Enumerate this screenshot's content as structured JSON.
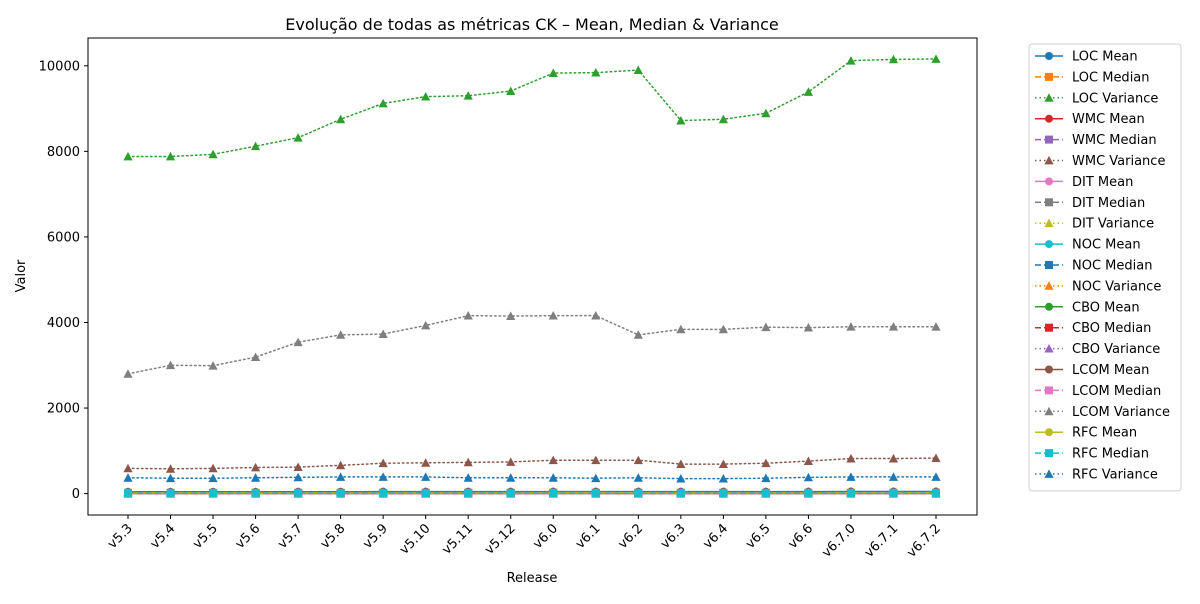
{
  "chart_data": {
    "type": "line",
    "title": "Evolução de todas as métricas CK – Mean, Median & Variance",
    "xlabel": "Release",
    "ylabel": "Valor",
    "ylim": [
      -500,
      10650
    ],
    "yticks": [
      0,
      2000,
      4000,
      6000,
      8000,
      10000
    ],
    "grid": false,
    "legend_position": "outside-right",
    "categories": [
      "v5.3",
      "v5.4",
      "v5.5",
      "v5.6",
      "v5.7",
      "v5.8",
      "v5.9",
      "v5.10",
      "v5.11",
      "v5.12",
      "v6.0",
      "v6.1",
      "v6.2",
      "v6.3",
      "v6.4",
      "v6.5",
      "v6.6",
      "v6.7.0",
      "v6.7.1",
      "v6.7.2"
    ],
    "series": [
      {
        "name": "LOC Mean",
        "color": "#1f77b4",
        "style": "solid",
        "marker": "circle",
        "values": [
          42,
          42,
          42,
          42,
          43,
          44,
          45,
          45,
          46,
          46,
          47,
          47,
          47,
          45,
          45,
          45,
          46,
          48,
          48,
          48
        ]
      },
      {
        "name": "LOC Median",
        "color": "#ff7f0e",
        "style": "dashed",
        "marker": "square",
        "values": [
          20,
          20,
          20,
          20,
          20,
          21,
          21,
          21,
          21,
          21,
          22,
          22,
          22,
          21,
          21,
          21,
          21,
          22,
          22,
          22
        ]
      },
      {
        "name": "LOC Variance",
        "color": "#2ca02c",
        "style": "dotted",
        "marker": "triangle",
        "values": [
          7880,
          7880,
          7930,
          8120,
          8320,
          8750,
          9120,
          9280,
          9300,
          9410,
          9830,
          9840,
          9900,
          8720,
          8750,
          8890,
          9390,
          10120,
          10150,
          10160
        ]
      },
      {
        "name": "WMC Mean",
        "color": "#d62728",
        "style": "solid",
        "marker": "circle",
        "values": [
          9,
          9,
          9,
          9,
          9,
          9,
          10,
          10,
          10,
          10,
          10,
          10,
          10,
          10,
          10,
          10,
          10,
          10,
          10,
          10
        ]
      },
      {
        "name": "WMC Median",
        "color": "#9467bd",
        "style": "dashed",
        "marker": "square",
        "values": [
          4,
          4,
          4,
          4,
          4,
          4,
          4,
          4,
          4,
          4,
          4,
          4,
          4,
          4,
          4,
          4,
          4,
          4,
          4,
          4
        ]
      },
      {
        "name": "WMC Variance",
        "color": "#8c564b",
        "style": "dotted",
        "marker": "triangle",
        "values": [
          590,
          580,
          590,
          610,
          620,
          660,
          710,
          720,
          730,
          740,
          780,
          780,
          780,
          690,
          690,
          710,
          760,
          820,
          820,
          830
        ]
      },
      {
        "name": "DIT Mean",
        "color": "#e377c2",
        "style": "solid",
        "marker": "circle",
        "values": [
          1,
          1,
          1,
          1,
          1,
          1,
          1,
          1,
          1,
          1,
          1,
          1,
          1,
          1,
          1,
          1,
          1,
          1,
          1,
          1
        ]
      },
      {
        "name": "DIT Median",
        "color": "#7f7f7f",
        "style": "dashed",
        "marker": "square",
        "values": [
          1,
          1,
          1,
          1,
          1,
          1,
          1,
          1,
          1,
          1,
          1,
          1,
          1,
          1,
          1,
          1,
          1,
          1,
          1,
          1
        ]
      },
      {
        "name": "DIT Variance",
        "color": "#bcbd22",
        "style": "dotted",
        "marker": "triangle",
        "values": [
          0,
          0,
          0,
          0,
          0,
          0,
          0,
          0,
          0,
          0,
          0,
          0,
          0,
          0,
          0,
          0,
          0,
          0,
          0,
          0
        ]
      },
      {
        "name": "NOC Mean",
        "color": "#17becf",
        "style": "solid",
        "marker": "circle",
        "values": [
          0,
          0,
          0,
          0,
          0,
          0,
          0,
          0,
          0,
          0,
          0,
          0,
          0,
          0,
          0,
          0,
          0,
          0,
          0,
          0
        ]
      },
      {
        "name": "NOC Median",
        "color": "#1f77b4",
        "style": "dashed",
        "marker": "square",
        "values": [
          0,
          0,
          0,
          0,
          0,
          0,
          0,
          0,
          0,
          0,
          0,
          0,
          0,
          0,
          0,
          0,
          0,
          0,
          0,
          0
        ]
      },
      {
        "name": "NOC Variance",
        "color": "#ff7f0e",
        "style": "dotted",
        "marker": "triangle",
        "values": [
          0,
          0,
          0,
          0,
          0,
          0,
          0,
          0,
          0,
          0,
          0,
          0,
          0,
          0,
          0,
          0,
          0,
          0,
          0,
          0
        ]
      },
      {
        "name": "CBO Mean",
        "color": "#2ca02c",
        "style": "solid",
        "marker": "circle",
        "values": [
          6,
          6,
          6,
          6,
          6,
          6,
          6,
          6,
          6,
          6,
          7,
          7,
          7,
          6,
          6,
          6,
          6,
          7,
          7,
          7
        ]
      },
      {
        "name": "CBO Median",
        "color": "#d62728",
        "style": "dashed",
        "marker": "square",
        "values": [
          4,
          4,
          4,
          4,
          4,
          4,
          4,
          4,
          4,
          4,
          4,
          4,
          4,
          4,
          4,
          4,
          4,
          4,
          4,
          4
        ]
      },
      {
        "name": "CBO Variance",
        "color": "#9467bd",
        "style": "dotted",
        "marker": "triangle",
        "values": [
          40,
          40,
          40,
          40,
          40,
          42,
          43,
          44,
          44,
          44,
          45,
          45,
          45,
          42,
          42,
          42,
          43,
          46,
          46,
          46
        ]
      },
      {
        "name": "LCOM Mean",
        "color": "#8c564b",
        "style": "solid",
        "marker": "circle",
        "values": [
          25,
          25,
          25,
          26,
          27,
          28,
          28,
          29,
          30,
          30,
          30,
          30,
          29,
          29,
          29,
          29,
          29,
          29,
          29,
          29
        ]
      },
      {
        "name": "LCOM Median",
        "color": "#e377c2",
        "style": "dashed",
        "marker": "square",
        "values": [
          2,
          2,
          2,
          2,
          2,
          2,
          2,
          2,
          2,
          2,
          2,
          2,
          2,
          2,
          2,
          2,
          2,
          2,
          2,
          2
        ]
      },
      {
        "name": "LCOM Variance",
        "color": "#7f7f7f",
        "style": "dotted",
        "marker": "triangle",
        "values": [
          2800,
          3000,
          2990,
          3190,
          3540,
          3710,
          3730,
          3930,
          4160,
          4150,
          4160,
          4160,
          3710,
          3840,
          3840,
          3890,
          3880,
          3900,
          3900,
          3900
        ]
      },
      {
        "name": "RFC Mean",
        "color": "#bcbd22",
        "style": "solid",
        "marker": "circle",
        "values": [
          14,
          14,
          14,
          14,
          14,
          15,
          15,
          15,
          15,
          15,
          16,
          16,
          16,
          15,
          15,
          15,
          15,
          16,
          16,
          16
        ]
      },
      {
        "name": "RFC Median",
        "color": "#17becf",
        "style": "dashed",
        "marker": "square",
        "values": [
          8,
          8,
          8,
          8,
          8,
          8,
          8,
          8,
          8,
          8,
          8,
          8,
          8,
          8,
          8,
          8,
          8,
          8,
          8,
          8
        ]
      },
      {
        "name": "RFC Variance",
        "color": "#1f77b4",
        "style": "dotted",
        "marker": "triangle",
        "values": [
          370,
          360,
          360,
          370,
          380,
          390,
          390,
          390,
          370,
          370,
          370,
          360,
          370,
          350,
          350,
          360,
          380,
          390,
          390,
          390
        ]
      }
    ]
  }
}
